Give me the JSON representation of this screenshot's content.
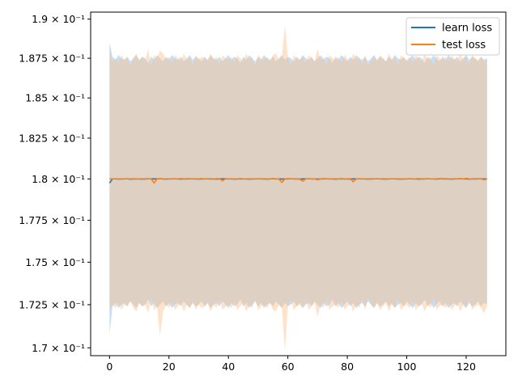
{
  "chart_data": {
    "type": "line",
    "title": "",
    "xlabel": "",
    "ylabel": "",
    "xlim": [
      -6.35,
      133.35
    ],
    "ylim": [
      0.16955,
      0.19045
    ],
    "y_scale": "log",
    "grid": false,
    "legend_position": "top-right",
    "x_ticks": [
      0,
      20,
      40,
      60,
      80,
      100,
      120
    ],
    "y_ticks": [
      {
        "value": 0.17,
        "label": "1.7 × 10⁻¹"
      },
      {
        "value": 0.1725,
        "label": "1.725 × 10⁻¹"
      },
      {
        "value": 0.175,
        "label": "1.75 × 10⁻¹"
      },
      {
        "value": 0.1775,
        "label": "1.775 × 10⁻¹"
      },
      {
        "value": 0.18,
        "label": "1.8 × 10⁻¹"
      },
      {
        "value": 0.1825,
        "label": "1.825 × 10⁻¹"
      },
      {
        "value": 0.185,
        "label": "1.85 × 10⁻¹"
      },
      {
        "value": 0.1875,
        "label": "1.875 × 10⁻¹"
      },
      {
        "value": 0.19,
        "label": "1.9 × 10⁻¹"
      }
    ],
    "series": [
      {
        "name": "learn loss",
        "color": "#1f77b4",
        "band_color": "#7fb7ef",
        "x_start": 0,
        "values": [
          0.17975,
          0.18,
          0.18001,
          0.17999,
          0.18,
          0.18,
          0.18001,
          0.17998,
          0.18,
          0.18,
          0.18,
          0.17999,
          0.18,
          0.18001,
          0.18,
          0.18,
          0.18,
          0.18001,
          0.18,
          0.17999,
          0.18,
          0.18,
          0.18001,
          0.18,
          0.17999,
          0.18,
          0.18,
          0.18001,
          0.18,
          0.18,
          0.17999,
          0.18,
          0.18,
          0.18001,
          0.18,
          0.18,
          0.17999,
          0.18,
          0.18,
          0.18001,
          0.18,
          0.18,
          0.17999,
          0.18,
          0.18001,
          0.18,
          0.18,
          0.17999,
          0.18,
          0.18,
          0.18001,
          0.18,
          0.18,
          0.17999,
          0.18,
          0.18001,
          0.18,
          0.18,
          0.17999,
          0.18,
          0.18,
          0.18001,
          0.18,
          0.18,
          0.17999,
          0.18,
          0.18,
          0.18001,
          0.18,
          0.18,
          0.17999,
          0.18,
          0.18,
          0.18001,
          0.18,
          0.18,
          0.17999,
          0.18,
          0.18001,
          0.18,
          0.18,
          0.17999,
          0.18,
          0.18,
          0.18001,
          0.18,
          0.18,
          0.17999,
          0.18,
          0.18,
          0.18001,
          0.18,
          0.18,
          0.17999,
          0.18,
          0.18001,
          0.18,
          0.18,
          0.17999,
          0.18,
          0.18,
          0.18001,
          0.18,
          0.18,
          0.17999,
          0.18,
          0.18,
          0.18001,
          0.18,
          0.18,
          0.17999,
          0.18,
          0.18001,
          0.18,
          0.18,
          0.17999,
          0.18,
          0.18,
          0.18001,
          0.18,
          0.18,
          0.17999,
          0.18,
          0.18,
          0.18001,
          0.18,
          0.18,
          0.18
        ],
        "upper": [
          0.1885,
          0.1876,
          0.1874,
          0.1877,
          0.1875,
          0.1874,
          0.1876,
          0.1873,
          0.1875,
          0.1877,
          0.1874,
          0.1876,
          0.1875,
          0.1872,
          0.1876,
          0.1874,
          0.1877,
          0.1875,
          0.1873,
          0.1876,
          0.1874,
          0.1877,
          0.1875,
          0.1874,
          0.1876,
          0.1873,
          0.1875,
          0.1877,
          0.1874,
          0.1876,
          0.1875,
          0.1873,
          0.1876,
          0.1874,
          0.1877,
          0.1875,
          0.1874,
          0.1876,
          0.1873,
          0.1875,
          0.1877,
          0.1874,
          0.1876,
          0.1875,
          0.1872,
          0.1876,
          0.1874,
          0.1877,
          0.1875,
          0.1873,
          0.1876,
          0.1874,
          0.1877,
          0.1875,
          0.1874,
          0.1876,
          0.1873,
          0.1875,
          0.1877,
          0.1874,
          0.1876,
          0.1875,
          0.1873,
          0.1876,
          0.1874,
          0.1877,
          0.1875,
          0.1874,
          0.1876,
          0.1873,
          0.1875,
          0.1877,
          0.1874,
          0.1876,
          0.1875,
          0.1872,
          0.1876,
          0.1874,
          0.1877,
          0.1875,
          0.1873,
          0.1876,
          0.1874,
          0.1877,
          0.1875,
          0.1874,
          0.1876,
          0.1873,
          0.1875,
          0.1877,
          0.1874,
          0.1876,
          0.1875,
          0.1873,
          0.1876,
          0.1874,
          0.1877,
          0.1875,
          0.1874,
          0.1876,
          0.1873,
          0.1875,
          0.1877,
          0.1874,
          0.1876,
          0.1875,
          0.1872,
          0.1876,
          0.1874,
          0.1877,
          0.1875,
          0.1873,
          0.1876,
          0.1874,
          0.1877,
          0.1875,
          0.1874,
          0.1876,
          0.1873,
          0.1875,
          0.1877,
          0.1874,
          0.1876,
          0.1875,
          0.1873,
          0.1876,
          0.1874,
          0.1875
        ],
        "lower": [
          0.1708,
          0.1724,
          0.1726,
          0.1723,
          0.1725,
          0.1726,
          0.1724,
          0.1727,
          0.1725,
          0.1723,
          0.1726,
          0.1724,
          0.1725,
          0.1728,
          0.1724,
          0.1726,
          0.1723,
          0.1725,
          0.1727,
          0.1724,
          0.1726,
          0.1723,
          0.1725,
          0.1726,
          0.1724,
          0.1727,
          0.1725,
          0.1723,
          0.1726,
          0.1724,
          0.1725,
          0.1727,
          0.1724,
          0.1726,
          0.1723,
          0.1725,
          0.1726,
          0.1724,
          0.1727,
          0.1725,
          0.1723,
          0.1726,
          0.1724,
          0.1725,
          0.1728,
          0.1724,
          0.1726,
          0.1723,
          0.1725,
          0.1727,
          0.1724,
          0.1726,
          0.1723,
          0.1725,
          0.1726,
          0.1724,
          0.1727,
          0.1725,
          0.1723,
          0.1726,
          0.1724,
          0.1725,
          0.1727,
          0.1724,
          0.1726,
          0.1723,
          0.1725,
          0.1726,
          0.1724,
          0.1727,
          0.1725,
          0.1723,
          0.1726,
          0.1724,
          0.1725,
          0.1728,
          0.1724,
          0.1726,
          0.1723,
          0.1725,
          0.1727,
          0.1724,
          0.1726,
          0.1723,
          0.1725,
          0.1726,
          0.1724,
          0.1727,
          0.1725,
          0.1723,
          0.1726,
          0.1724,
          0.1725,
          0.1727,
          0.1724,
          0.1726,
          0.1723,
          0.1725,
          0.1726,
          0.1724,
          0.1727,
          0.1725,
          0.1723,
          0.1726,
          0.1724,
          0.1725,
          0.1728,
          0.1724,
          0.1726,
          0.1723,
          0.1725,
          0.1727,
          0.1724,
          0.1726,
          0.1723,
          0.1725,
          0.1726,
          0.1724,
          0.1727,
          0.1725,
          0.1723,
          0.1726,
          0.1724,
          0.1725,
          0.1727,
          0.1724,
          0.1726,
          0.1725
        ]
      },
      {
        "name": "test loss",
        "color": "#ff7f0e",
        "band_color": "#ffbf86",
        "x_start": 0,
        "values": [
          0.18001,
          0.18,
          0.18,
          0.17999,
          0.18,
          0.18,
          0.18001,
          0.18,
          0.17999,
          0.18,
          0.18,
          0.18001,
          0.17999,
          0.18,
          0.18001,
          0.17975,
          0.18,
          0.18002,
          0.18,
          0.17999,
          0.18,
          0.18001,
          0.18,
          0.18,
          0.18002,
          0.18,
          0.17999,
          0.18,
          0.18,
          0.18001,
          0.18,
          0.18002,
          0.18,
          0.18,
          0.17999,
          0.18,
          0.18001,
          0.18002,
          0.17988,
          0.18,
          0.18,
          0.18001,
          0.18,
          0.18,
          0.17999,
          0.18,
          0.18,
          0.18001,
          0.17999,
          0.18,
          0.18,
          0.18001,
          0.17999,
          0.18,
          0.18,
          0.18002,
          0.18,
          0.18,
          0.17978,
          0.18,
          0.18002,
          0.18,
          0.18,
          0.18,
          0.17999,
          0.17986,
          0.18,
          0.18001,
          0.18,
          0.18,
          0.17995,
          0.18,
          0.18002,
          0.18,
          0.18,
          0.18,
          0.18001,
          0.18,
          0.17999,
          0.18,
          0.18,
          0.18002,
          0.17983,
          0.18,
          0.18,
          0.18,
          0.18001,
          0.18,
          0.17999,
          0.18,
          0.18001,
          0.18,
          0.17999,
          0.18,
          0.18,
          0.18,
          0.18001,
          0.17999,
          0.18,
          0.18,
          0.18,
          0.18001,
          0.18,
          0.18,
          0.18002,
          0.17999,
          0.18,
          0.18001,
          0.18,
          0.18,
          0.18,
          0.18002,
          0.18,
          0.17999,
          0.18,
          0.18,
          0.18001,
          0.18,
          0.18002,
          0.18,
          0.18003,
          0.18,
          0.18,
          0.17999,
          0.18,
          0.18001,
          0.17995,
          0.18
        ],
        "upper": [
          0.188,
          0.1873,
          0.1875,
          0.1872,
          0.1877,
          0.1874,
          0.1876,
          0.187,
          0.1875,
          0.1878,
          0.1873,
          0.1876,
          0.1874,
          0.1881,
          0.187,
          0.1877,
          0.1875,
          0.188,
          0.1878,
          0.1874,
          0.1876,
          0.1872,
          0.1877,
          0.1875,
          0.1873,
          0.1878,
          0.1874,
          0.1876,
          0.1871,
          0.1877,
          0.1874,
          0.1876,
          0.1875,
          0.1873,
          0.1878,
          0.1874,
          0.1876,
          0.1871,
          0.1877,
          0.1875,
          0.1874,
          0.1876,
          0.1872,
          0.1877,
          0.1875,
          0.1873,
          0.1878,
          0.1874,
          0.1876,
          0.187,
          0.1877,
          0.1875,
          0.1874,
          0.1876,
          0.1873,
          0.1877,
          0.1878,
          0.1874,
          0.1876,
          0.1896,
          0.1876,
          0.187,
          0.1877,
          0.1875,
          0.1874,
          0.1876,
          0.1872,
          0.1877,
          0.1875,
          0.1873,
          0.1881,
          0.1874,
          0.1876,
          0.1871,
          0.1877,
          0.1875,
          0.1874,
          0.1876,
          0.1872,
          0.1877,
          0.1875,
          0.1873,
          0.1878,
          0.1874,
          0.1876,
          0.1871,
          0.1877,
          0.187,
          0.1874,
          0.1876,
          0.1873,
          0.1877,
          0.1875,
          0.1873,
          0.1878,
          0.1874,
          0.1876,
          0.1871,
          0.1877,
          0.1875,
          0.1874,
          0.1876,
          0.1872,
          0.1877,
          0.1875,
          0.1873,
          0.1878,
          0.1874,
          0.1876,
          0.187,
          0.1877,
          0.1875,
          0.1874,
          0.1876,
          0.1873,
          0.1877,
          0.1875,
          0.1873,
          0.1878,
          0.1874,
          0.1876,
          0.1871,
          0.1877,
          0.1875,
          0.1874,
          0.1876,
          0.1873,
          0.1875
        ],
        "lower": [
          0.1722,
          0.1725,
          0.1723,
          0.1726,
          0.1722,
          0.1725,
          0.1724,
          0.1727,
          0.1723,
          0.1721,
          0.1726,
          0.1724,
          0.1725,
          0.172,
          0.1729,
          0.1722,
          0.1724,
          0.1707,
          0.1721,
          0.1725,
          0.1723,
          0.1727,
          0.1722,
          0.1724,
          0.1726,
          0.1721,
          0.1725,
          0.1723,
          0.1727,
          0.1722,
          0.1725,
          0.1723,
          0.1724,
          0.1726,
          0.1721,
          0.1725,
          0.1723,
          0.1728,
          0.1722,
          0.1724,
          0.1725,
          0.1723,
          0.1727,
          0.1722,
          0.1724,
          0.1726,
          0.1721,
          0.1725,
          0.1723,
          0.1728,
          0.1722,
          0.1724,
          0.1725,
          0.1723,
          0.1726,
          0.1722,
          0.1721,
          0.1725,
          0.1723,
          0.1698,
          0.1724,
          0.1728,
          0.1722,
          0.1724,
          0.1725,
          0.1723,
          0.1727,
          0.1722,
          0.1724,
          0.1726,
          0.1718,
          0.1725,
          0.1723,
          0.1728,
          0.1722,
          0.1724,
          0.1725,
          0.1723,
          0.1727,
          0.1722,
          0.1724,
          0.1726,
          0.1721,
          0.1725,
          0.1723,
          0.1728,
          0.1722,
          0.1729,
          0.1725,
          0.1723,
          0.1726,
          0.1722,
          0.1724,
          0.1726,
          0.1721,
          0.1725,
          0.1723,
          0.1728,
          0.1722,
          0.1724,
          0.1725,
          0.1723,
          0.1727,
          0.1722,
          0.1724,
          0.1726,
          0.1721,
          0.1725,
          0.1723,
          0.1729,
          0.1722,
          0.1724,
          0.1725,
          0.1723,
          0.1726,
          0.1722,
          0.1724,
          0.1726,
          0.1721,
          0.1725,
          0.1723,
          0.1728,
          0.1722,
          0.1724,
          0.1725,
          0.1723,
          0.172,
          0.1724
        ]
      }
    ]
  }
}
